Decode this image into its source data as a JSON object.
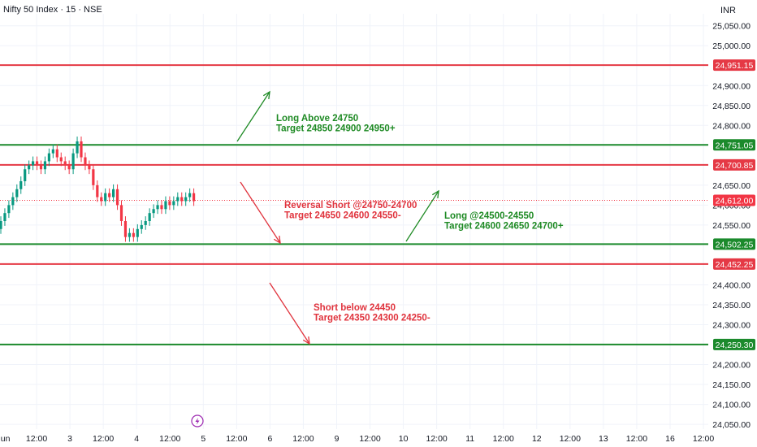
{
  "header": {
    "symbol": "Nifty 50 Index · 15 · NSE",
    "currency": "INR"
  },
  "colors": {
    "up": "#089981",
    "down": "#f23645",
    "green_level": "#1b8a2c",
    "red_level": "#e53945",
    "grid": "#f0f3fa",
    "axis_text": "#131722",
    "green_note": "#1e8a24",
    "red_note": "#e0333d"
  },
  "chart_data": {
    "type": "candlestick",
    "price_axis": {
      "ticks": [
        "25,050.00",
        "25,000.00",
        "24,900.00",
        "24,850.00",
        "24,800.00",
        "24,650.00",
        "24,600.00",
        "24,550.00",
        "24,400.00",
        "24,350.00",
        "24,300.00",
        "24,200.00",
        "24,150.00",
        "24,100.00",
        "24,050.00"
      ],
      "ylim": [
        24040,
        25090
      ]
    },
    "time_axis": {
      "ticks": [
        "Jun",
        "12:00",
        "3",
        "12:00",
        "4",
        "12:00",
        "5",
        "12:00",
        "6",
        "12:00",
        "9",
        "12:00",
        "10",
        "12:00",
        "11",
        "12:00",
        "12",
        "12:00",
        "13",
        "12:00",
        "16",
        "12:00"
      ]
    },
    "candle_closes": [
      24560,
      24580,
      24600,
      24620,
      24640,
      24660,
      24690,
      24700,
      24710,
      24700,
      24690,
      24710,
      24730,
      24740,
      24720,
      24710,
      24700,
      24690,
      24730,
      24760,
      24720,
      24700,
      24690,
      24650,
      24620,
      24610,
      24630,
      24620,
      24640,
      24600,
      24560,
      24520,
      24530,
      24520,
      24540,
      24550,
      24560,
      24580,
      24590,
      24600,
      24590,
      24610,
      24600,
      24610,
      24620,
      24610,
      24620,
      24630,
      24610
    ],
    "last_price": "24,612.00",
    "levels": [
      {
        "label": "24,951.15",
        "price": 24951.15,
        "color": "red"
      },
      {
        "label": "24,751.05",
        "price": 24751.05,
        "color": "green"
      },
      {
        "label": "24,700.85",
        "price": 24700.85,
        "color": "red"
      },
      {
        "label": "24,502.25",
        "price": 24502.25,
        "color": "green"
      },
      {
        "label": "24,452.25",
        "price": 24452.25,
        "color": "red"
      },
      {
        "label": "24,250.30",
        "price": 24250.3,
        "color": "green"
      }
    ],
    "annotations": [
      {
        "lines": [
          "Long Above 24750",
          "Target 24850 24900 24950+"
        ],
        "color": "green"
      },
      {
        "lines": [
          "Reversal Short @24750-24700",
          "Target 24650 24600 24550-"
        ],
        "color": "red"
      },
      {
        "lines": [
          "Long @24500-24550",
          "Target 24600 24650 24700+"
        ],
        "color": "green"
      },
      {
        "lines": [
          "Short below 24450",
          "Target 24350 24300 24250-"
        ],
        "color": "red"
      }
    ]
  }
}
